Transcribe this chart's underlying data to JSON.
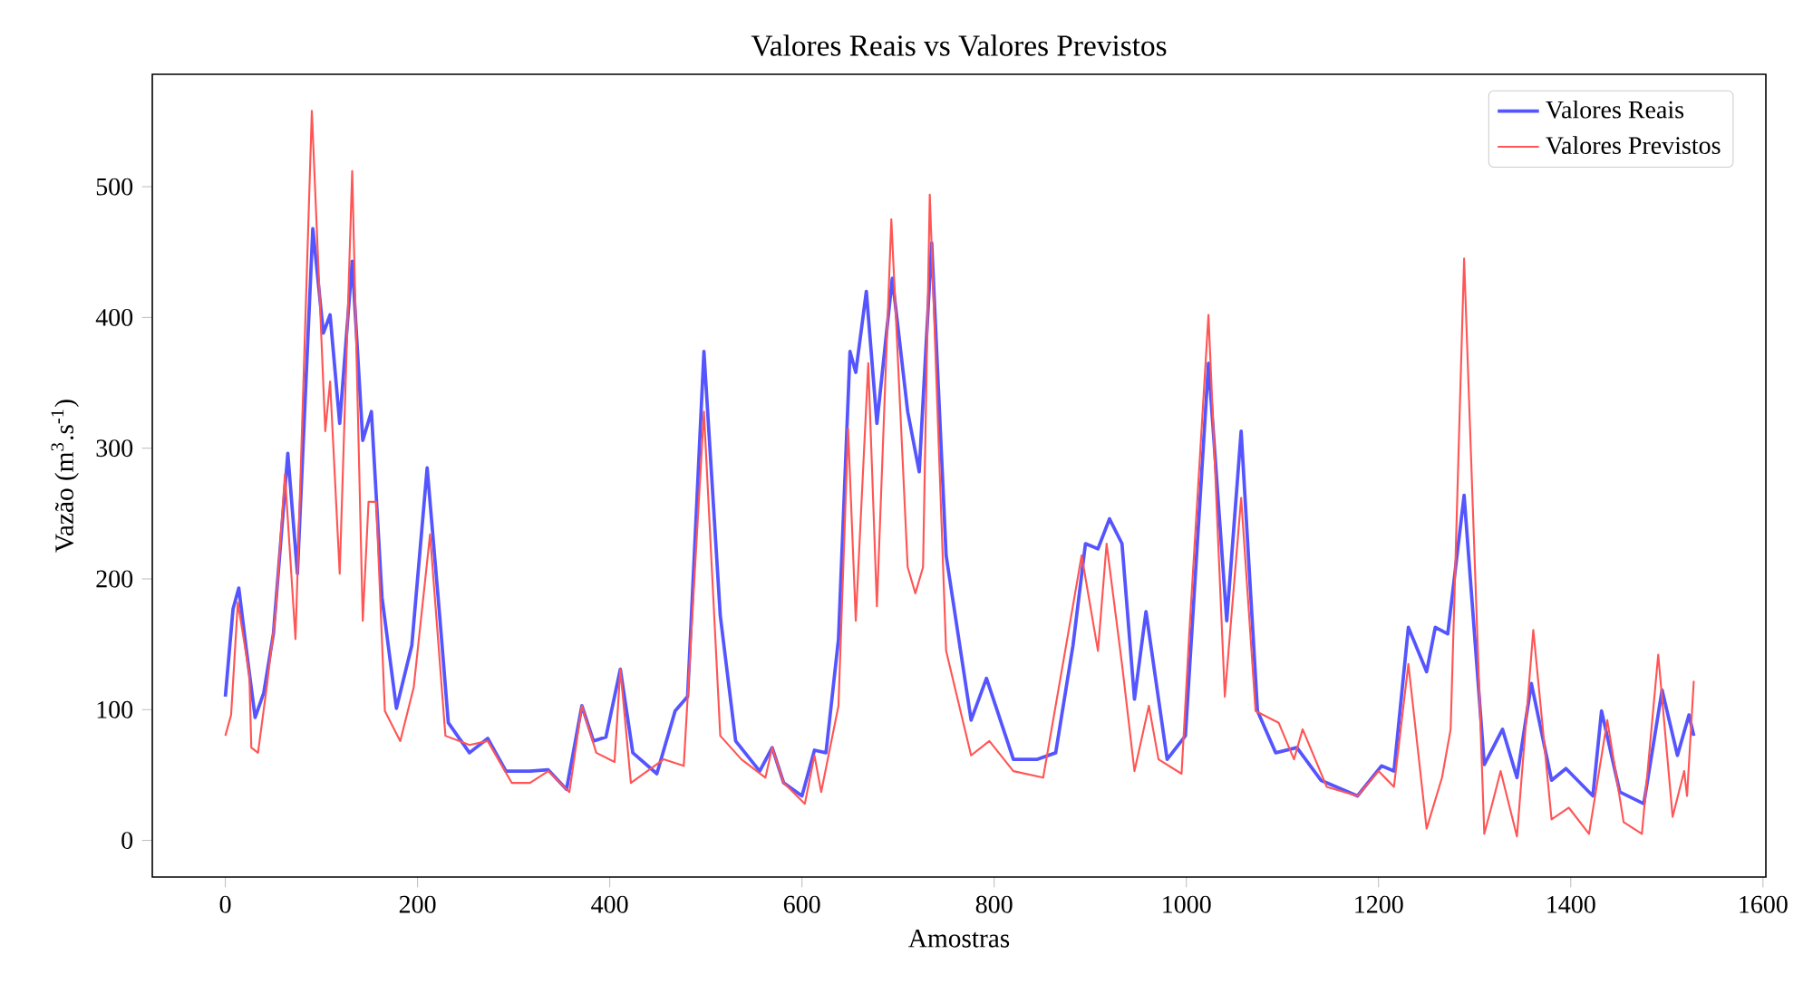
{
  "chart_data": {
    "type": "line",
    "title": "Valores Reais vs Valores Previstos",
    "xlabel": "Amostras",
    "ylabel": "Vazão (m$^{3}$.s$^{-1}$)",
    "xlim": [
      -76,
      1603
    ],
    "ylim": [
      -28,
      586
    ],
    "xticks": [
      0,
      200,
      400,
      600,
      800,
      1000,
      1200,
      1400,
      1600
    ],
    "yticks": [
      0,
      100,
      200,
      300,
      400,
      500
    ],
    "grid": false,
    "legend": "top right",
    "marker": "none",
    "line_style": "solid",
    "series": [
      {
        "name": "Valores Reais",
        "color": "#5555ff",
        "x": [
          0,
          8,
          14,
          22,
          31,
          40,
          50,
          65,
          75,
          91,
          102,
          109,
          119,
          132,
          143,
          152,
          163,
          178,
          194,
          210,
          223,
          232,
          254,
          273,
          292,
          317,
          336,
          355,
          371,
          383,
          396,
          411,
          424,
          449,
          468,
          481,
          498,
          515,
          531,
          556,
          569,
          581,
          600,
          613,
          625,
          638,
          650,
          656,
          667,
          678,
          694,
          710,
          722,
          735,
          750,
          776,
          792,
          820,
          845,
          864,
          882,
          895,
          908,
          920,
          933,
          946,
          958,
          980,
          999,
          1023,
          1042,
          1057,
          1074,
          1093,
          1115,
          1140,
          1178,
          1203,
          1216,
          1231,
          1250,
          1259,
          1272,
          1289,
          1310,
          1329,
          1344,
          1359,
          1380,
          1395,
          1423,
          1432,
          1451,
          1476,
          1495,
          1511,
          1523,
          1528
        ],
        "values": [
          110,
          177,
          193,
          145,
          94,
          113,
          158,
          296,
          204,
          468,
          388,
          402,
          319,
          443,
          306,
          328,
          186,
          101,
          149,
          285,
          172,
          90,
          67,
          78,
          53,
          53,
          54,
          39,
          103,
          76,
          79,
          131,
          67,
          51,
          99,
          110,
          374,
          172,
          76,
          53,
          71,
          44,
          34,
          69,
          67,
          154,
          374,
          358,
          420,
          319,
          430,
          328,
          282,
          457,
          218,
          92,
          124,
          62,
          62,
          67,
          149,
          227,
          223,
          246,
          227,
          108,
          175,
          62,
          80,
          365,
          168,
          313,
          99,
          67,
          71,
          46,
          34,
          57,
          53,
          163,
          129,
          163,
          158,
          264,
          58,
          85,
          48,
          120,
          46,
          55,
          34,
          99,
          37,
          28,
          115,
          65,
          96,
          80
        ]
      },
      {
        "name": "Valores Previstos",
        "color": "#ff5555",
        "x": [
          0,
          6,
          13,
          25,
          27,
          34,
          43,
          52,
          62,
          73,
          90,
          104,
          109,
          119,
          132,
          143,
          149,
          157,
          166,
          182,
          196,
          213,
          229,
          254,
          273,
          298,
          317,
          336,
          358,
          371,
          386,
          405,
          411,
          422,
          456,
          477,
          498,
          515,
          537,
          562,
          569,
          581,
          603,
          613,
          620,
          638,
          648,
          656,
          669,
          678,
          693,
          710,
          718,
          726,
          733,
          750,
          776,
          795,
          820,
          851,
          876,
          891,
          908,
          917,
          933,
          946,
          961,
          971,
          995,
          1003,
          1023,
          1040,
          1057,
          1072,
          1096,
          1112,
          1121,
          1146,
          1178,
          1200,
          1216,
          1231,
          1250,
          1266,
          1275,
          1289,
          1310,
          1319,
          1327,
          1344,
          1361,
          1380,
          1398,
          1419,
          1438,
          1455,
          1474,
          1491,
          1506,
          1518,
          1521,
          1528
        ],
        "values": [
          80,
          96,
          182,
          127,
          71,
          67,
          117,
          172,
          280,
          154,
          558,
          313,
          351,
          204,
          512,
          168,
          259,
          259,
          99,
          76,
          117,
          234,
          80,
          73,
          76,
          44,
          44,
          53,
          37,
          103,
          67,
          60,
          131,
          44,
          62,
          57,
          328,
          80,
          62,
          48,
          71,
          44,
          28,
          65,
          37,
          103,
          315,
          168,
          365,
          179,
          475,
          209,
          189,
          209,
          494,
          145,
          65,
          76,
          53,
          48,
          154,
          218,
          145,
          227,
          135,
          53,
          103,
          62,
          51,
          158,
          402,
          110,
          262,
          99,
          90,
          62,
          85,
          41,
          34,
          53,
          41,
          135,
          9,
          48,
          85,
          445,
          5,
          30,
          53,
          3,
          161,
          16,
          25,
          5,
          92,
          14,
          5,
          142,
          18,
          53,
          34,
          122
        ]
      }
    ]
  }
}
